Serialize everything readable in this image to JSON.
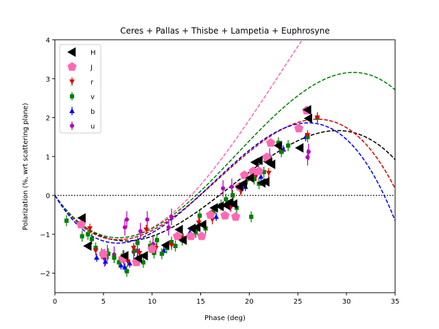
{
  "chart_data": {
    "type": "scatter",
    "title": "Ceres + Pallas + Thisbe + Lampetia + Euphrosyne",
    "xlabel": "Phase (deg)",
    "ylabel": "Polarization (%, wrt scattering plane)",
    "xlim": [
      0,
      35
    ],
    "ylim": [
      -2.5,
      4
    ],
    "xticks": [
      0,
      5,
      10,
      15,
      20,
      25,
      30,
      35
    ],
    "yticks": [
      -2,
      -1,
      0,
      1,
      2,
      3,
      4
    ],
    "grid": false,
    "legend_position": "top-left",
    "zero_line": {
      "y": 0,
      "style": "dotted",
      "color": "#000000"
    },
    "series": [
      {
        "name": "H",
        "color": "#000000",
        "marker": "triangle-left",
        "points": [
          [
            2.8,
            -0.58
          ],
          [
            3.4,
            -1.3
          ],
          [
            7.2,
            -1.55
          ],
          [
            8.6,
            -1.62
          ],
          [
            9.2,
            -1.55
          ],
          [
            11.4,
            -1.28
          ],
          [
            12.8,
            -0.88
          ],
          [
            13.2,
            -1.15
          ],
          [
            14.1,
            -0.85
          ],
          [
            14.6,
            -0.82
          ],
          [
            15.2,
            -0.75
          ],
          [
            16.4,
            -0.32
          ],
          [
            17.0,
            -0.28
          ],
          [
            17.6,
            -0.25
          ],
          [
            18.0,
            -0.18
          ],
          [
            18.4,
            -0.22
          ],
          [
            19.0,
            0.22
          ],
          [
            19.4,
            0.3
          ],
          [
            20.1,
            0.45
          ],
          [
            20.6,
            0.85
          ],
          [
            21.0,
            0.9
          ],
          [
            21.3,
            0.32
          ],
          [
            21.7,
            0.35
          ],
          [
            22.0,
            0.85
          ],
          [
            22.3,
            0.8
          ],
          [
            23.0,
            1.28
          ],
          [
            25.2,
            1.22
          ],
          [
            26.0,
            2.2
          ],
          [
            26.1,
            1.98
          ]
        ],
        "curve": {
          "type": "polynomial",
          "color": "#000000",
          "coef": [
            -0.35,
            0.03,
            -0.00055
          ],
          "fit_to": 35
        }
      },
      {
        "name": "J",
        "color": "#ff69b4",
        "marker": "pentagon",
        "points": [
          [
            2.7,
            -0.75
          ],
          [
            5.0,
            -1.5
          ],
          [
            7.0,
            -1.62
          ],
          [
            8.4,
            -1.72
          ],
          [
            10.0,
            -1.38
          ],
          [
            12.6,
            -1.05
          ],
          [
            14.0,
            -1.05
          ],
          [
            15.1,
            -1.05
          ],
          [
            16.0,
            -0.5
          ],
          [
            17.5,
            -0.52
          ],
          [
            18.6,
            -0.55
          ],
          [
            19.0,
            0.22
          ],
          [
            19.5,
            0.52
          ],
          [
            20.4,
            0.62
          ],
          [
            21.0,
            0.62
          ],
          [
            21.8,
            0.98
          ],
          [
            22.2,
            1.35
          ],
          [
            25.1,
            1.72
          ],
          [
            25.9,
            2.18
          ]
        ],
        "curve": {
          "type": "polynomial",
          "color": "#ff69b4",
          "coef": [
            -0.353,
            0.0315,
            -0.00045
          ],
          "fit_to": 35
        }
      },
      {
        "name": "r",
        "color": "#dd0000",
        "marker": "triangle-down",
        "points": [
          [
            3.6,
            -0.85
          ],
          [
            4.2,
            -1.42
          ],
          [
            5.1,
            -1.5
          ],
          [
            7.0,
            -1.62
          ],
          [
            7.5,
            -1.7
          ],
          [
            8.1,
            -1.35
          ],
          [
            8.7,
            -1.48
          ],
          [
            9.4,
            -0.88
          ],
          [
            10.4,
            -1.35
          ],
          [
            12.0,
            -1.28
          ],
          [
            13.2,
            -1.1
          ],
          [
            14.8,
            -0.7
          ],
          [
            16.2,
            -0.62
          ],
          [
            17.3,
            -0.28
          ],
          [
            18.1,
            -0.3
          ],
          [
            19.1,
            0.12
          ],
          [
            20.7,
            0.5
          ],
          [
            22.0,
            0.58
          ],
          [
            23.1,
            1.22
          ],
          [
            26.0,
            1.55
          ],
          [
            27.0,
            2.0
          ]
        ],
        "curve": {
          "type": "polynomial",
          "color": "#dd0000",
          "coef": [
            -0.38,
            0.0362,
            -0.00072
          ],
          "fit_to": 35
        }
      },
      {
        "name": "v",
        "color": "#008000",
        "marker": "square",
        "points": [
          [
            1.2,
            -0.65
          ],
          [
            2.8,
            -1.05
          ],
          [
            3.4,
            -1.0
          ],
          [
            3.8,
            -1.12
          ],
          [
            4.2,
            -1.35
          ],
          [
            4.8,
            -1.5
          ],
          [
            5.5,
            -1.5
          ],
          [
            6.1,
            -1.6
          ],
          [
            6.6,
            -1.72
          ],
          [
            7.0,
            -1.55
          ],
          [
            7.4,
            -1.95
          ],
          [
            8.2,
            -1.42
          ],
          [
            8.5,
            -1.22
          ],
          [
            9.1,
            -1.72
          ],
          [
            9.8,
            -1.3
          ],
          [
            10.2,
            -1.48
          ],
          [
            10.5,
            -1.15
          ],
          [
            11.0,
            -1.5
          ],
          [
            11.5,
            -1.35
          ],
          [
            12.0,
            -1.2
          ],
          [
            12.4,
            -1.3
          ],
          [
            13.1,
            -1.15
          ],
          [
            14.5,
            -0.95
          ],
          [
            14.9,
            -0.52
          ],
          [
            15.5,
            -0.85
          ],
          [
            16.3,
            -0.42
          ],
          [
            17.1,
            -0.25
          ],
          [
            17.6,
            -0.1
          ],
          [
            18.3,
            0.0
          ],
          [
            18.7,
            -0.32
          ],
          [
            19.2,
            0.18
          ],
          [
            19.8,
            0.42
          ],
          [
            20.2,
            -0.55
          ],
          [
            20.5,
            0.42
          ],
          [
            21.0,
            0.3
          ],
          [
            21.5,
            0.6
          ],
          [
            22.1,
            0.95
          ],
          [
            23.0,
            1.35
          ],
          [
            23.3,
            1.12
          ],
          [
            24.0,
            1.28
          ],
          [
            26.0,
            1.5
          ],
          [
            27.0,
            2.0
          ]
        ],
        "curve": {
          "type": "polynomial",
          "color": "#008000",
          "coef": [
            -0.36,
            0.0335,
            -0.0006
          ],
          "fit_to": 35
        }
      },
      {
        "name": "b",
        "color": "#0000ff",
        "marker": "triangle-up",
        "points": [
          [
            4.3,
            -1.6
          ],
          [
            5.2,
            -1.7
          ],
          [
            6.8,
            -1.8
          ],
          [
            7.2,
            -1.85
          ],
          [
            7.7,
            -1.75
          ],
          [
            8.5,
            -1.6
          ],
          [
            11.2,
            -1.42
          ],
          [
            13.9,
            -0.95
          ],
          [
            16.6,
            -0.55
          ],
          [
            18.0,
            -0.28
          ],
          [
            19.6,
            0.22
          ],
          [
            21.2,
            0.48
          ],
          [
            23.5,
            1.18
          ],
          [
            25.8,
            1.5
          ]
        ],
        "curve": {
          "type": "polynomial",
          "color": "#0000ff",
          "coef": [
            -0.414,
            0.04,
            -0.00082
          ],
          "fit_to": 35
        }
      },
      {
        "name": "u",
        "color": "#bb00bb",
        "marker": "circle",
        "points": [
          [
            5.1,
            -1.62
          ],
          [
            5.4,
            -1.48
          ],
          [
            6.1,
            -1.52
          ],
          [
            7.1,
            -1.62
          ],
          [
            7.2,
            -0.82
          ],
          [
            7.4,
            -0.62
          ],
          [
            8.1,
            -1.45
          ],
          [
            8.5,
            -1.42
          ],
          [
            8.8,
            -0.92
          ],
          [
            9.5,
            -0.62
          ],
          [
            10.1,
            -1.25
          ],
          [
            11.7,
            -0.82
          ],
          [
            12.0,
            -0.55
          ],
          [
            17.3,
            0.18
          ],
          [
            18.2,
            0.22
          ],
          [
            22.1,
            1.0
          ],
          [
            26.0,
            0.98
          ],
          [
            26.1,
            1.12
          ]
        ]
      }
    ]
  }
}
